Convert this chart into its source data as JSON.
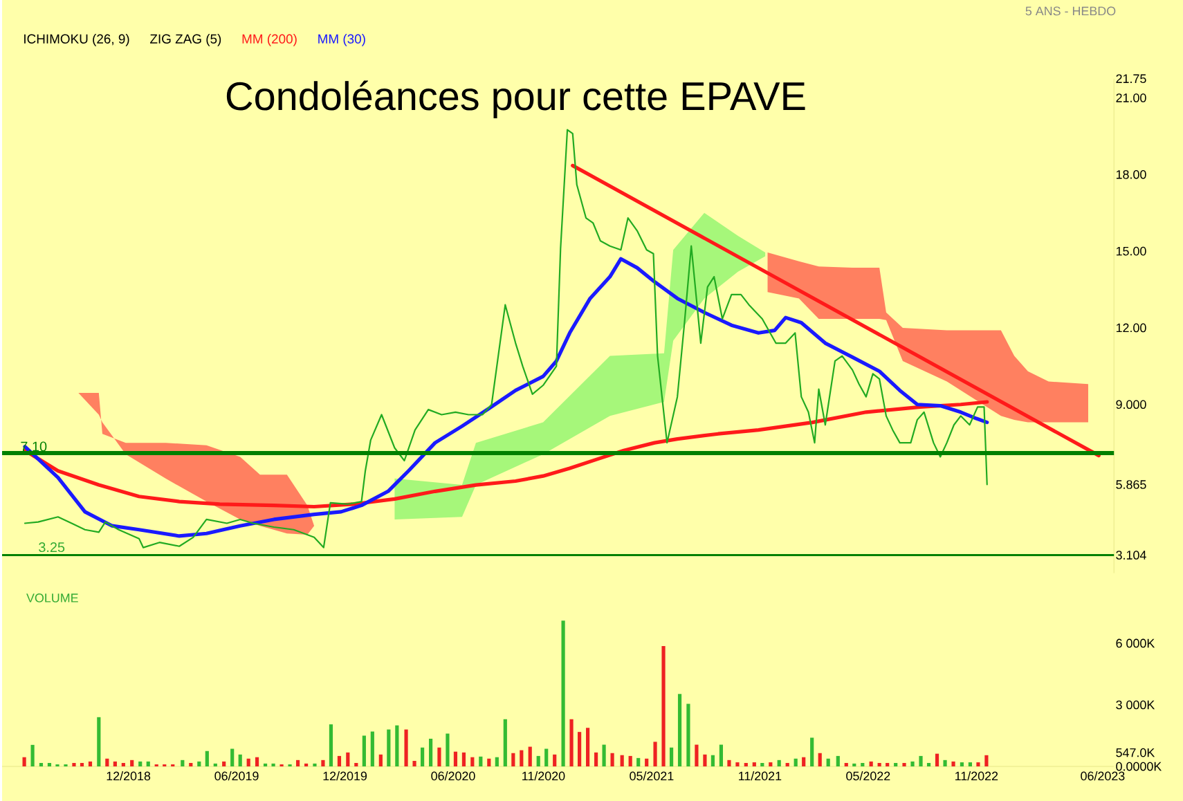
{
  "chart_data": [
    {
      "type": "line",
      "title": "Condoléances pour cette EPAVE",
      "subtitle": "5 ANS - HEBDO",
      "xlim": [
        "2018-05-01",
        "2023-06-20"
      ],
      "ylim": [
        2.4,
        21.75
      ],
      "yticks": [
        {
          "value": 3.104,
          "label": "3.104"
        },
        {
          "value": 5.865,
          "label": "5.865"
        },
        {
          "value": 9,
          "label": "9.000"
        },
        {
          "value": 12,
          "label": "12.00"
        },
        {
          "value": 15,
          "label": "15.00"
        },
        {
          "value": 18,
          "label": "18.00"
        },
        {
          "value": 21,
          "label": "21.00"
        },
        {
          "value": 21.75,
          "label": "21.75"
        }
      ],
      "tick_labels": "y",
      "legend": "top left",
      "annotations": [
        "ICHIMOKU (26, 9)",
        "ZIG ZAG (5)",
        "3.25"
      ],
      "ref_lines": [
        {
          "axis": "y",
          "value": 7.1,
          "label": "7.10",
          "color": "#008000"
        },
        {
          "axis": "y",
          "value": 3.104,
          "color": "#008000"
        }
      ],
      "series": [
        {
          "type": "area",
          "color": "#ff8060",
          "x": [
            "2018-09-08",
            "2018-10-12",
            "2018-10-18",
            "2018-11-27",
            "2019-02-03",
            "2019-04-11",
            "2019-06-07",
            "2019-07-10",
            "2019-08-25",
            "2019-09-29",
            "2019-10-10"
          ],
          "upper": [
            9.45,
            9.45,
            7.85,
            7.5,
            7.5,
            7.4,
            6.95,
            6.25,
            6.25,
            5.05,
            4.25
          ],
          "lower": [
            9.45,
            8.6,
            8.3,
            7.05,
            6.1,
            5.2,
            4.5,
            4.25,
            3.95,
            3.9,
            4.25
          ],
          "values": [
            null,
            null,
            null,
            null,
            null,
            null,
            null,
            null,
            null,
            null,
            null
          ]
        },
        {
          "type": "area",
          "color": "#ff8060",
          "x": [
            "2021-11-14",
            "2022-01-06",
            "2022-02-09",
            "2022-04-05",
            "2022-05-20",
            "2022-06-01",
            "2022-06-29",
            "2022-09-12",
            "2022-12-12",
            "2023-01-04",
            "2023-01-27",
            "2023-03-01",
            "2023-05-07"
          ],
          "upper": [
            14.95,
            14.6,
            14.4,
            14.35,
            14.35,
            12.6,
            12.0,
            11.9,
            11.9,
            10.9,
            10.3,
            9.9,
            9.8
          ],
          "lower": [
            13.4,
            13.15,
            12.35,
            12.35,
            12.35,
            12.3,
            10.7,
            9.9,
            8.55,
            8.4,
            8.3,
            8.3,
            8.3
          ],
          "values": [
            null,
            null,
            null,
            null,
            null,
            null,
            null,
            null,
            null,
            null,
            null,
            null,
            null
          ]
        },
        {
          "type": "area",
          "color": "#a6f77a",
          "x": [
            "2020-02-24",
            "2020-06-16",
            "2020-07-09",
            "2020-10-31",
            "2021-02-22",
            "2021-05-22",
            "2021-06-07",
            "2021-07-29",
            "2021-09-25",
            "2021-11-10"
          ],
          "upper": [
            6.1,
            5.85,
            7.5,
            8.3,
            10.9,
            11.0,
            15.05,
            16.5,
            15.6,
            14.95
          ],
          "lower": [
            4.5,
            4.6,
            5.85,
            7.05,
            8.55,
            9.1,
            11.5,
            13.15,
            14.2,
            14.8
          ],
          "values": [
            null,
            null,
            null,
            null,
            null,
            null,
            null,
            null,
            null,
            null
          ]
        },
        {
          "type": "line",
          "color": "#ff1a1a",
          "x": [
            "2020-12-20",
            "2023-05-25"
          ],
          "values": [
            18.35,
            7.0
          ]
        },
        {
          "type": "line",
          "name": "MM (200)",
          "color": "#ff1a1a",
          "x": [
            "2018-06-09",
            "2018-08-04",
            "2018-10-12",
            "2018-12-19",
            "2019-02-26",
            "2019-05-03",
            "2019-08-03",
            "2019-10-10",
            "2019-12-17",
            "2020-02-24",
            "2020-05-01",
            "2020-07-09",
            "2020-09-15",
            "2020-10-31",
            "2020-12-15",
            "2021-01-30",
            "2021-03-15",
            "2021-05-06",
            "2021-06-14",
            "2021-08-22",
            "2021-10-29",
            "2022-01-29",
            "2022-04-28",
            "2022-07-28",
            "2022-10-05",
            "2022-11-19"
          ],
          "values": [
            7.2,
            6.4,
            5.85,
            5.4,
            5.2,
            5.1,
            5.05,
            5.0,
            5.1,
            5.3,
            5.6,
            5.85,
            6.0,
            6.2,
            6.5,
            6.85,
            7.2,
            7.5,
            7.65,
            7.85,
            8.0,
            8.3,
            8.7,
            8.9,
            9.0,
            9.1
          ]
        },
        {
          "type": "line",
          "name": "MM (30)",
          "color": "#1a1aff",
          "x": [
            "2018-06-09",
            "2018-08-04",
            "2018-09-19",
            "2018-11-04",
            "2018-12-19",
            "2019-02-26",
            "2019-04-11",
            "2019-06-07",
            "2019-08-03",
            "2019-10-10",
            "2019-11-25",
            "2019-12-29",
            "2020-02-13",
            "2020-03-17",
            "2020-05-01",
            "2020-06-16",
            "2020-08-01",
            "2020-09-15",
            "2020-10-31",
            "2020-11-23",
            "2020-12-15",
            "2021-01-19",
            "2021-02-22",
            "2021-03-10",
            "2021-04-07",
            "2021-05-06",
            "2021-06-14",
            "2021-07-29",
            "2021-09-14",
            "2021-10-29",
            "2021-11-26",
            "2021-12-14",
            "2022-01-10",
            "2022-02-20",
            "2022-04-05",
            "2022-05-20",
            "2022-06-24",
            "2022-07-23",
            "2022-09-01",
            "2022-10-05",
            "2022-11-01",
            "2022-11-19"
          ],
          "values": [
            7.35,
            6.14,
            4.8,
            4.25,
            4.1,
            3.85,
            3.95,
            4.25,
            4.5,
            4.7,
            4.8,
            5.05,
            5.6,
            6.4,
            7.5,
            8.15,
            8.85,
            9.55,
            10.1,
            10.7,
            11.8,
            13.15,
            14.0,
            14.7,
            14.35,
            13.8,
            13.15,
            12.6,
            12.1,
            11.8,
            11.9,
            12.4,
            12.2,
            11.4,
            10.85,
            10.3,
            9.55,
            9.0,
            8.95,
            8.7,
            8.45,
            8.3
          ]
        },
        {
          "type": "line",
          "color": "#22aa22",
          "x": [
            "2018-06-09",
            "2018-07-01",
            "2018-08-04",
            "2018-08-27",
            "2018-09-19",
            "2018-10-12",
            "2018-10-23",
            "2018-11-15",
            "2018-12-19",
            "2018-12-26",
            "2019-01-23",
            "2019-02-26",
            "2019-03-19",
            "2019-04-11",
            "2019-05-15",
            "2019-06-07",
            "2019-06-29",
            "2019-08-03",
            "2019-09-06",
            "2019-10-10",
            "2019-10-26",
            "2019-11-07",
            "2019-12-06",
            "2019-12-29",
            "2020-01-05",
            "2020-01-14",
            "2020-02-02",
            "2020-02-24",
            "2020-03-10",
            "2020-03-28",
            "2020-04-20",
            "2020-05-12",
            "2020-06-05",
            "2020-06-27",
            "2020-07-20",
            "2020-08-05",
            "2020-08-28",
            "2020-09-15",
            "2020-09-27",
            "2020-10-13",
            "2020-10-31",
            "2020-11-23",
            "2020-11-30",
            "2020-12-11",
            "2020-12-20",
            "2020-12-27",
            "2021-01-12",
            "2021-01-24",
            "2021-02-06",
            "2021-02-22",
            "2021-03-10",
            "2021-03-22",
            "2021-04-07",
            "2021-04-23",
            "2021-05-04",
            "2021-05-11",
            "2021-05-27",
            "2021-06-14",
            "2021-06-26",
            "2021-07-07",
            "2021-07-23",
            "2021-08-04",
            "2021-08-15",
            "2021-08-29",
            "2021-09-14",
            "2021-09-30",
            "2021-10-13",
            "2021-11-05",
            "2021-11-28",
            "2021-12-14",
            "2021-12-30",
            "2022-01-10",
            "2022-01-22",
            "2022-02-02",
            "2022-02-09",
            "2022-02-20",
            "2022-03-06",
            "2022-03-18",
            "2022-04-05",
            "2022-04-16",
            "2022-04-28",
            "2022-05-09",
            "2022-05-20",
            "2022-06-01",
            "2022-06-12",
            "2022-06-24",
            "2022-07-12",
            "2022-07-23",
            "2022-08-04",
            "2022-08-20",
            "2022-09-01",
            "2022-09-12",
            "2022-09-24",
            "2022-10-05",
            "2022-10-20",
            "2022-11-03",
            "2022-11-14",
            "2022-11-19"
          ],
          "values": [
            4.35,
            4.4,
            4.6,
            4.35,
            4.1,
            4.0,
            4.4,
            4.1,
            3.75,
            3.4,
            3.6,
            3.45,
            3.8,
            4.5,
            4.35,
            4.5,
            4.35,
            4.2,
            4.1,
            3.8,
            3.4,
            5.15,
            5.1,
            5.2,
            6.4,
            7.6,
            8.6,
            7.3,
            6.8,
            8.0,
            8.8,
            8.6,
            8.7,
            8.6,
            8.6,
            9.0,
            12.9,
            11.4,
            10.5,
            9.4,
            9.75,
            10.5,
            15.1,
            19.75,
            19.6,
            17.6,
            16.3,
            16.1,
            15.4,
            15.2,
            15.05,
            16.3,
            15.8,
            15.05,
            14.9,
            10.9,
            7.5,
            9.3,
            12.2,
            15.2,
            11.4,
            13.6,
            14.0,
            12.35,
            13.3,
            13.3,
            12.9,
            12.35,
            11.4,
            11.4,
            11.8,
            9.3,
            8.7,
            7.5,
            9.6,
            8.2,
            10.7,
            10.9,
            10.35,
            9.8,
            9.3,
            10.2,
            10.0,
            8.55,
            8.0,
            7.5,
            7.5,
            8.4,
            8.7,
            7.5,
            6.95,
            7.5,
            8.2,
            8.55,
            8.2,
            8.9,
            8.9,
            5.865
          ]
        }
      ]
    },
    {
      "type": "bar",
      "title": "VOLUME",
      "xlim": [
        "2018-05-01",
        "2023-06-20"
      ],
      "ylim": [
        0,
        7400
      ],
      "xticks": [
        {
          "value": "2018-12-01",
          "label": "12/2018"
        },
        {
          "value": "2019-06-01",
          "label": "06/2019"
        },
        {
          "value": "2019-12-01",
          "label": "12/2019"
        },
        {
          "value": "2020-06-01",
          "label": "06/2020"
        },
        {
          "value": "2020-11-01",
          "label": "11/2020"
        },
        {
          "value": "2021-05-01",
          "label": "05/2021"
        },
        {
          "value": "2021-11-01",
          "label": "11/2021"
        },
        {
          "value": "2022-05-01",
          "label": "05/2022"
        },
        {
          "value": "2022-11-01",
          "label": "11/2022"
        },
        {
          "value": "2023-06-01",
          "label": "06/2023"
        }
      ],
      "yticks": [
        {
          "value": 0,
          "label": "0.0000K"
        },
        {
          "value": 547,
          "label": "547.0K"
        },
        {
          "value": 3000,
          "label": "3 000K"
        },
        {
          "value": 6000,
          "label": "6 000K"
        }
      ],
      "x": [
        "2018-06-08",
        "2018-06-22",
        "2018-07-06",
        "2018-07-20",
        "2018-08-03",
        "2018-08-17",
        "2018-08-31",
        "2018-09-14",
        "2018-09-28",
        "2018-10-12",
        "2018-10-26",
        "2018-11-09",
        "2018-11-23",
        "2018-12-07",
        "2018-12-21",
        "2019-01-04",
        "2019-01-18",
        "2019-02-01",
        "2019-02-15",
        "2019-03-01",
        "2019-03-15",
        "2019-03-29",
        "2019-04-12",
        "2019-04-26",
        "2019-05-10",
        "2019-05-24",
        "2019-06-07",
        "2019-06-21",
        "2019-07-05",
        "2019-07-19",
        "2019-08-02",
        "2019-08-16",
        "2019-08-30",
        "2019-09-13",
        "2019-09-27",
        "2019-10-11",
        "2019-10-25",
        "2019-11-08",
        "2019-11-22",
        "2019-12-06",
        "2019-12-20",
        "2020-01-03",
        "2020-01-17",
        "2020-01-31",
        "2020-02-14",
        "2020-02-28",
        "2020-03-13",
        "2020-03-27",
        "2020-04-10",
        "2020-04-24",
        "2020-05-08",
        "2020-05-22",
        "2020-06-05",
        "2020-06-19",
        "2020-07-03",
        "2020-07-17",
        "2020-07-31",
        "2020-08-14",
        "2020-08-28",
        "2020-09-11",
        "2020-09-25",
        "2020-10-09",
        "2020-10-23",
        "2020-11-06",
        "2020-11-20",
        "2020-12-04",
        "2020-12-18",
        "2021-01-01",
        "2021-01-15",
        "2021-01-29",
        "2021-02-12",
        "2021-02-26",
        "2021-03-12",
        "2021-03-26",
        "2021-04-09",
        "2021-04-23",
        "2021-05-07",
        "2021-05-21",
        "2021-06-04",
        "2021-06-18",
        "2021-07-02",
        "2021-07-16",
        "2021-07-30",
        "2021-08-13",
        "2021-08-27",
        "2021-09-10",
        "2021-09-24",
        "2021-10-08",
        "2021-10-22",
        "2021-11-05",
        "2021-11-19",
        "2021-12-03",
        "2021-12-17",
        "2021-12-31",
        "2022-01-14",
        "2022-01-28",
        "2022-02-11",
        "2022-02-25",
        "2022-03-11",
        "2022-03-25",
        "2022-04-08",
        "2022-04-22",
        "2022-05-06",
        "2022-05-20",
        "2022-06-03",
        "2022-06-17",
        "2022-07-01",
        "2022-07-15",
        "2022-07-29",
        "2022-08-12",
        "2022-08-26",
        "2022-09-09",
        "2022-09-23",
        "2022-10-07",
        "2022-10-21",
        "2022-11-04",
        "2022-11-18"
      ],
      "values": [
        450,
        1050,
        170,
        170,
        100,
        100,
        170,
        170,
        240,
        2400,
        380,
        240,
        170,
        310,
        240,
        240,
        100,
        100,
        100,
        310,
        170,
        240,
        750,
        140,
        240,
        860,
        580,
        380,
        450,
        140,
        140,
        100,
        100,
        310,
        140,
        140,
        310,
        2050,
        510,
        680,
        170,
        1500,
        1700,
        580,
        1800,
        2000,
        1800,
        270,
        920,
        1350,
        920,
        1600,
        720,
        680,
        450,
        480,
        380,
        450,
        2300,
        650,
        790,
        960,
        510,
        860,
        580,
        7100,
        2300,
        1680,
        1880,
        680,
        1060,
        650,
        550,
        510,
        410,
        380,
        1200,
        5860,
        920,
        3530,
        3050,
        1060,
        580,
        550,
        1060,
        310,
        200,
        170,
        200,
        170,
        200,
        310,
        170,
        380,
        450,
        1400,
        650,
        380,
        510,
        170,
        140,
        170,
        240,
        170,
        170,
        170,
        170,
        240,
        510,
        170,
        620,
        310,
        240,
        200,
        200,
        200,
        547
      ],
      "colors": [
        "#ee2222",
        "#33bb33",
        "#33bb33",
        "#33bb33",
        "#33bb33",
        "#33bb33",
        "#ee2222",
        "#ee2222",
        "#ee2222",
        "#33bb33",
        "#ee2222",
        "#ee2222",
        "#ee2222",
        "#ee2222",
        "#33bb33",
        "#33bb33",
        "#ee2222",
        "#ee2222",
        "#ee2222",
        "#33bb33",
        "#ee2222",
        "#33bb33",
        "#33bb33",
        "#33bb33",
        "#ee2222",
        "#33bb33",
        "#33bb33",
        "#ee2222",
        "#ee2222",
        "#33bb33",
        "#33bb33",
        "#ee2222",
        "#33bb33",
        "#ee2222",
        "#ee2222",
        "#33bb33",
        "#ee2222",
        "#33bb33",
        "#ee2222",
        "#ee2222",
        "#ee2222",
        "#33bb33",
        "#33bb33",
        "#ee2222",
        "#33bb33",
        "#33bb33",
        "#ee2222",
        "#ee2222",
        "#33bb33",
        "#33bb33",
        "#ee2222",
        "#33bb33",
        "#ee2222",
        "#ee2222",
        "#ee2222",
        "#33bb33",
        "#ee2222",
        "#33bb33",
        "#33bb33",
        "#ee2222",
        "#ee2222",
        "#ee2222",
        "#33bb33",
        "#33bb33",
        "#ee2222",
        "#33bb33",
        "#ee2222",
        "#ee2222",
        "#ee2222",
        "#ee2222",
        "#33bb33",
        "#ee2222",
        "#ee2222",
        "#ee2222",
        "#33bb33",
        "#ee2222",
        "#ee2222",
        "#ee2222",
        "#33bb33",
        "#33bb33",
        "#33bb33",
        "#ee2222",
        "#ee2222",
        "#33bb33",
        "#33bb33",
        "#ee2222",
        "#ee2222",
        "#ee2222",
        "#ee2222",
        "#33bb33",
        "#ee2222",
        "#33bb33",
        "#ee2222",
        "#33bb33",
        "#ee2222",
        "#33bb33",
        "#ee2222",
        "#33bb33",
        "#33bb33",
        "#ee2222",
        "#33bb33",
        "#33bb33",
        "#ee2222",
        "#ee2222",
        "#ee2222",
        "#33bb33",
        "#ee2222",
        "#33bb33",
        "#33bb33",
        "#33bb33",
        "#ee2222",
        "#33bb33",
        "#ee2222",
        "#33bb33",
        "#33bb33",
        "#ee2222",
        "#ee2222"
      ]
    }
  ]
}
